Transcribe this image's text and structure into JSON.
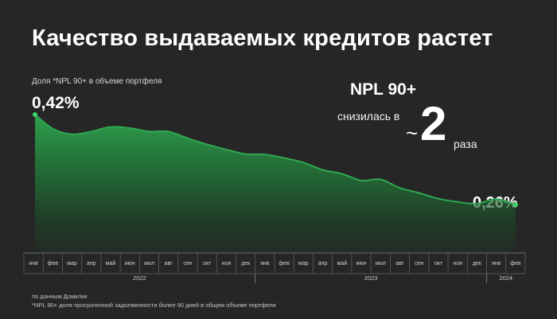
{
  "title": "Качество выдаваемых кредитов растет",
  "callout": {
    "head": "NPL 90+",
    "sub": "снизилась в",
    "tilde": "~",
    "number": "2",
    "unit": "раза"
  },
  "footer": {
    "source": "по данным Домклик",
    "note": "*NPL 90+ доля просроченной задолженности более 90 дней в общем объеме портфеля"
  },
  "chart_data": {
    "type": "area",
    "title": "Доля *NPL 90+ в объеме портфеля",
    "start_label": "0,42%",
    "end_label": "0,26%",
    "unit": "%",
    "color": "#2fa84f",
    "categories": [
      "янв",
      "фев",
      "мар",
      "апр",
      "май",
      "июн",
      "июл",
      "авг",
      "сен",
      "окт",
      "ноя",
      "дек",
      "янв",
      "фев",
      "мар",
      "апр",
      "май",
      "июн",
      "июл",
      "авг",
      "сен",
      "окт",
      "ноя",
      "дек",
      "янв",
      "фев"
    ],
    "years": [
      {
        "label": "2022",
        "start": 0,
        "end": 11
      },
      {
        "label": "2023",
        "start": 12,
        "end": 23
      },
      {
        "label": "2024",
        "start": 24,
        "end": 25
      }
    ],
    "values": [
      0.42,
      0.395,
      0.385,
      0.39,
      0.398,
      0.396,
      0.39,
      0.39,
      0.378,
      0.367,
      0.358,
      0.35,
      0.349,
      0.343,
      0.335,
      0.322,
      0.315,
      0.303,
      0.305,
      0.29,
      0.281,
      0.271,
      0.265,
      0.262,
      0.27,
      0.26
    ],
    "ylim": [
      0.2,
      0.42
    ],
    "grid": false
  }
}
